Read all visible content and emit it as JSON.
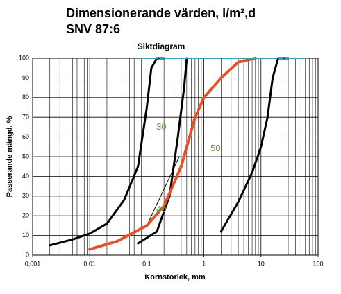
{
  "chart_data": {
    "type": "line",
    "title": [
      "Dimensionerande värden, l/m²,d",
      "SNV 87:6"
    ],
    "subtitle": "Siktdiagram",
    "xlabel": "Kornstorlek, mm",
    "ylabel": "Passerande mängd, %",
    "xscale": "log",
    "xlim": [
      0.001,
      100
    ],
    "xticks": [
      {
        "value": 0.001,
        "label": "0,001"
      },
      {
        "value": 0.01,
        "label": "0,01"
      },
      {
        "value": 0.1,
        "label": "0,1"
      },
      1,
      10,
      100
    ],
    "ylim": [
      0,
      100
    ],
    "yticks": [
      0,
      10,
      20,
      30,
      40,
      50,
      60,
      70,
      80,
      90,
      100
    ],
    "grid": true,
    "minor_grid": true,
    "series": [
      {
        "color": "#000000",
        "width": 3,
        "x": [
          0.002,
          0.005,
          0.01,
          0.02,
          0.04,
          0.07,
          0.1,
          0.12,
          0.15,
          0.2
        ],
        "values": [
          5,
          8,
          11,
          16,
          28,
          45,
          75,
          95,
          100,
          100
        ]
      },
      {
        "color": "#000000",
        "width": 3,
        "x": [
          0.07,
          0.15,
          0.25,
          0.35,
          0.45,
          0.5
        ],
        "values": [
          6,
          12,
          30,
          60,
          85,
          100
        ]
      },
      {
        "color": "#000000",
        "width": 1,
        "x": [
          0.1,
          0.37
        ],
        "values": [
          15,
          50
        ]
      },
      {
        "color": "#e8502a",
        "width": 4,
        "x": [
          0.01,
          0.03,
          0.1,
          0.2,
          0.4,
          0.7,
          1,
          2,
          4,
          8
        ],
        "values": [
          3,
          7,
          15,
          25,
          45,
          70,
          80,
          90,
          98,
          100
        ]
      },
      {
        "color": "#000000",
        "width": 3,
        "x": [
          2,
          4,
          7,
          10,
          13,
          16,
          20,
          30
        ],
        "values": [
          12,
          27,
          42,
          55,
          70,
          90,
          100,
          100
        ]
      },
      {
        "color": "#2aa5b8",
        "width": 2,
        "dash": true,
        "x": [
          0.08,
          60
        ],
        "values": [
          100,
          100
        ]
      }
    ],
    "annotations": [
      {
        "text": "30",
        "x": 0.18,
        "y": 65,
        "color": "#5a9e3a"
      },
      {
        "text": "40",
        "x": 0.18,
        "y": 23,
        "color": "#5a9e3a"
      },
      {
        "text": "50",
        "x": 1.6,
        "y": 54,
        "color": "#5a9e3a"
      }
    ]
  }
}
